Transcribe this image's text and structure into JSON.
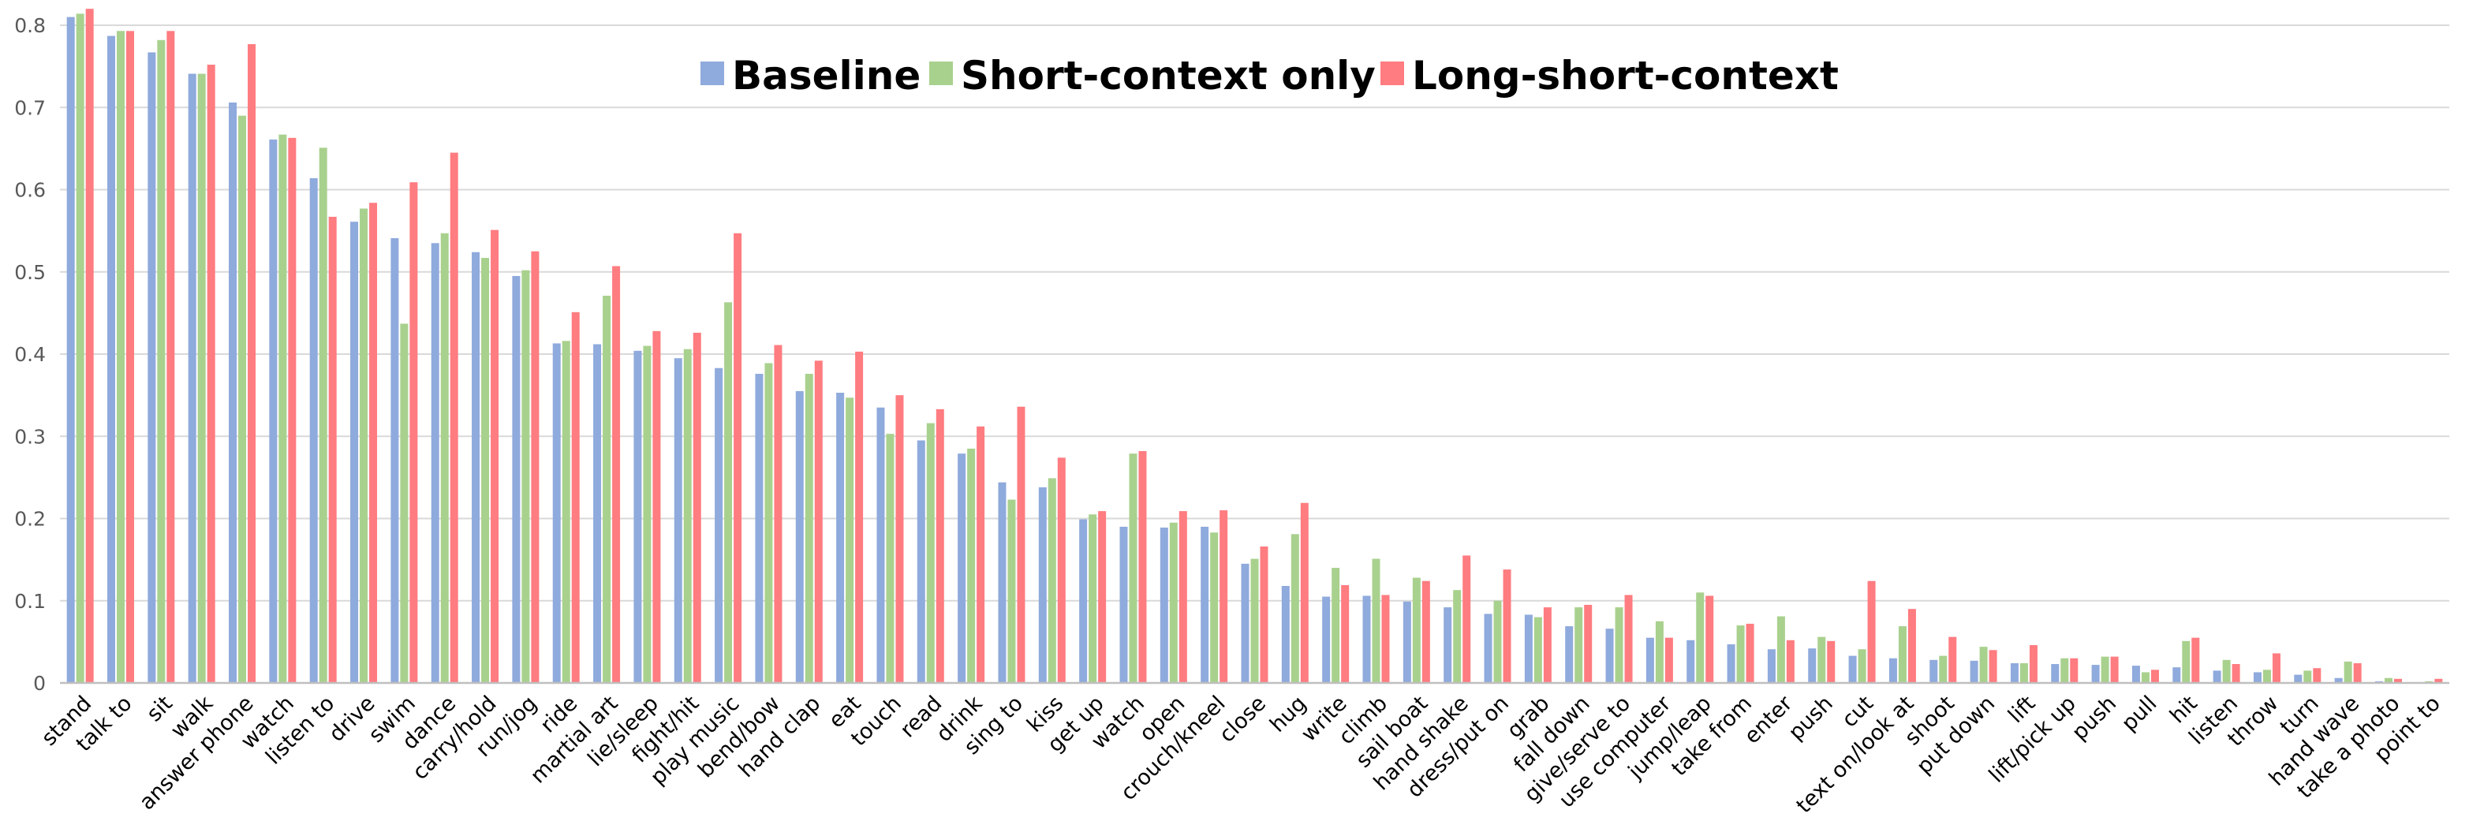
{
  "chart_data": {
    "type": "bar",
    "title": "",
    "xlabel": "",
    "ylabel": "",
    "ylim": [
      0,
      0.8
    ],
    "yticks": [
      0,
      0.1,
      0.2,
      0.3,
      0.4,
      0.5,
      0.6,
      0.7,
      0.8
    ],
    "ytick_labels": [
      "0",
      "0.1",
      "0.2",
      "0.3",
      "0.4",
      "0.5",
      "0.6",
      "0.7",
      "0.8"
    ],
    "grid": true,
    "legend_position": "top-center",
    "categories": [
      "stand",
      "talk to",
      "sit",
      "walk",
      "answer phone",
      "watch",
      "listen to",
      "drive",
      "swim",
      "dance",
      "carry/hold",
      "run/jog",
      "ride",
      "martial art",
      "lie/sleep",
      "fight/hit",
      "play music",
      "bend/bow",
      "hand clap",
      "eat",
      "touch",
      "read",
      "drink",
      "sing to",
      "kiss",
      "get up",
      "watch",
      "open",
      "crouch/kneel",
      "close",
      "hug",
      "write",
      "climb",
      "sail boat",
      "hand shake",
      "dress/put on",
      "grab",
      "fall down",
      "give/serve to",
      "use computer",
      "jump/leap",
      "take from",
      "enter",
      "push",
      "cut",
      "text on/look at",
      "shoot",
      "put down",
      "lift",
      "lift/pick up",
      "push",
      "pull",
      "hit",
      "listen",
      "throw",
      "turn",
      "hand wave",
      "take a photo",
      "point to"
    ],
    "series": [
      {
        "name": "Baseline",
        "color": "#8faadc",
        "values": [
          0.81,
          0.787,
          0.767,
          0.741,
          0.706,
          0.661,
          0.614,
          0.561,
          0.541,
          0.535,
          0.524,
          0.495,
          0.413,
          0.412,
          0.404,
          0.395,
          0.383,
          0.376,
          0.355,
          0.353,
          0.335,
          0.295,
          0.279,
          0.244,
          0.238,
          0.199,
          0.19,
          0.189,
          0.19,
          0.145,
          0.118,
          0.105,
          0.106,
          0.099,
          0.092,
          0.084,
          0.083,
          0.069,
          0.066,
          0.055,
          0.052,
          0.047,
          0.041,
          0.042,
          0.033,
          0.03,
          0.028,
          0.027,
          0.024,
          0.023,
          0.022,
          0.021,
          0.019,
          0.015,
          0.013,
          0.01,
          0.006,
          0.002,
          0.001
        ]
      },
      {
        "name": "Short-context only",
        "color": "#a9d18e",
        "values": [
          0.814,
          0.793,
          0.782,
          0.741,
          0.69,
          0.667,
          0.651,
          0.577,
          0.437,
          0.547,
          0.517,
          0.502,
          0.416,
          0.471,
          0.41,
          0.406,
          0.463,
          0.389,
          0.376,
          0.347,
          0.303,
          0.316,
          0.285,
          0.223,
          0.249,
          0.205,
          0.279,
          0.195,
          0.183,
          0.151,
          0.181,
          0.14,
          0.151,
          0.128,
          0.113,
          0.1,
          0.08,
          0.092,
          0.092,
          0.075,
          0.11,
          0.07,
          0.081,
          0.056,
          0.041,
          0.069,
          0.033,
          0.044,
          0.024,
          0.03,
          0.032,
          0.013,
          0.051,
          0.028,
          0.016,
          0.015,
          0.026,
          0.006,
          0.002
        ]
      },
      {
        "name": "Long-short-context",
        "color": "#ff7c80",
        "values": [
          0.82,
          0.793,
          0.793,
          0.752,
          0.777,
          0.663,
          0.567,
          0.584,
          0.609,
          0.645,
          0.551,
          0.525,
          0.451,
          0.507,
          0.428,
          0.426,
          0.547,
          0.411,
          0.392,
          0.403,
          0.35,
          0.333,
          0.312,
          0.336,
          0.274,
          0.209,
          0.282,
          0.209,
          0.21,
          0.166,
          0.219,
          0.119,
          0.107,
          0.124,
          0.155,
          0.138,
          0.092,
          0.095,
          0.107,
          0.055,
          0.106,
          0.072,
          0.052,
          0.051,
          0.124,
          0.09,
          0.056,
          0.04,
          0.046,
          0.03,
          0.032,
          0.016,
          0.055,
          0.023,
          0.036,
          0.018,
          0.024,
          0.005,
          0.005
        ]
      }
    ]
  }
}
